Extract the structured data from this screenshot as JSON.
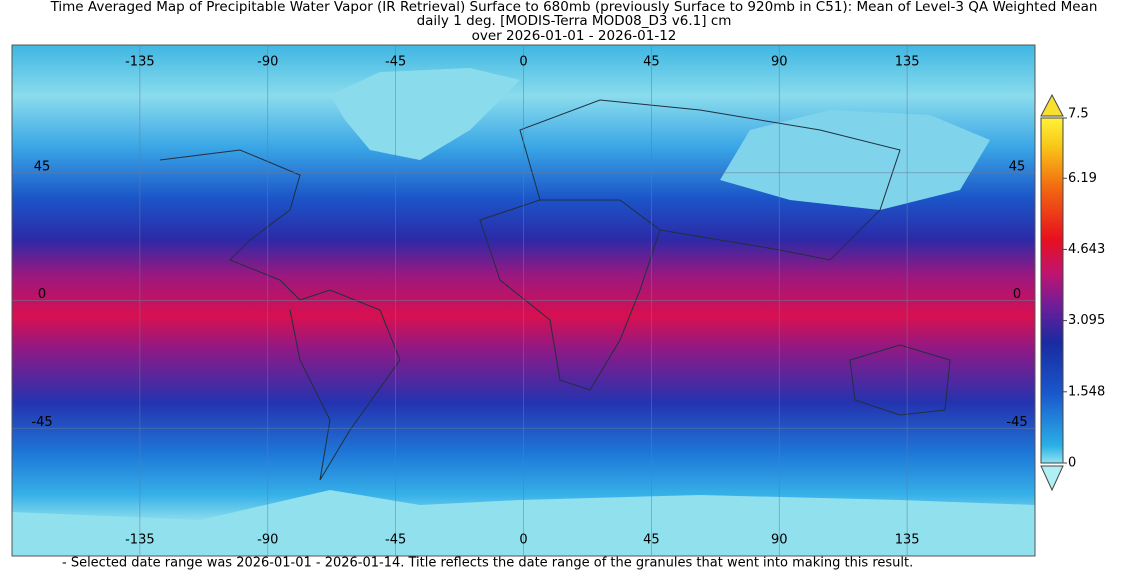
{
  "title": {
    "line1": "Time Averaged Map of Precipitable Water Vapor (IR Retrieval) Surface to 680mb (previously Surface to 920mb in C51): Mean of Level-3 QA Weighted Mean",
    "line2": "daily 1 deg. [MODIS-Terra MOD08_D3 v6.1] cm",
    "line3": "over 2026-01-01 - 2026-01-12"
  },
  "map": {
    "longitudes": [
      -135,
      -90,
      -45,
      0,
      45,
      90,
      135
    ],
    "latitudes": [
      45,
      0,
      -45
    ]
  },
  "colorbar": {
    "ticks": [
      7.5,
      6.19,
      4.643,
      3.095,
      1.548,
      0
    ]
  },
  "footnote": "- Selected date range was 2026-01-01 - 2026-01-14. Title reflects the date range of the granules that went into making this result."
}
